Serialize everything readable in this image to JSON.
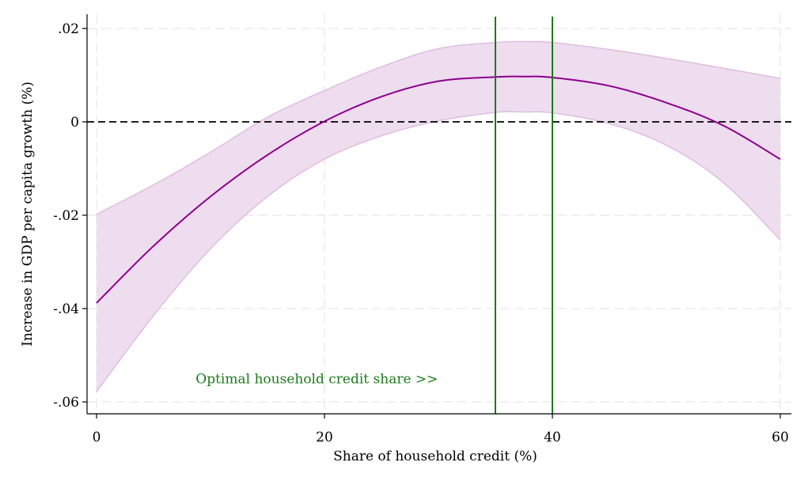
{
  "chart_data": {
    "type": "line",
    "title": "",
    "xlabel": "Share of household credit (%)",
    "ylabel": "Increase in GDP per capita growth (%)",
    "xlim": [
      0,
      60
    ],
    "ylim": [
      -0.062,
      0.022
    ],
    "x_ticks": [
      0,
      20,
      40,
      60
    ],
    "x_tick_labels": [
      "0",
      "20",
      "40",
      "60"
    ],
    "y_ticks": [
      -0.06,
      -0.04,
      -0.02,
      0,
      0.02
    ],
    "y_tick_labels": [
      "-.06",
      "-.04",
      "-.02",
      "0",
      ".02"
    ],
    "grid": true,
    "reference_line": {
      "y": 0,
      "style": "dashed",
      "color": "#000000"
    },
    "vertical_lines": {
      "x": [
        35,
        40
      ],
      "color": "#1a7a1a"
    },
    "annotation": {
      "text": "Optimal household credit share >>",
      "x": 8.7,
      "y": -0.055,
      "color": "#1a7a1a"
    },
    "series": [
      {
        "x": [
          0,
          5,
          10,
          15,
          20,
          25,
          30,
          35,
          37.5,
          40,
          45,
          50,
          55,
          60
        ],
        "estimate": [
          -0.0388,
          -0.0266,
          -0.016,
          -0.0071,
          0.0001,
          0.0054,
          0.0087,
          0.0096,
          0.0097,
          0.0095,
          0.0077,
          0.0041,
          -0.0008,
          -0.008
        ],
        "ci_lower": [
          -0.0578,
          -0.0415,
          -0.0272,
          -0.016,
          -0.008,
          -0.003,
          0.0002,
          0.002,
          0.0021,
          0.0019,
          -0.0004,
          -0.005,
          -0.013,
          -0.0253
        ],
        "ci_upper": [
          -0.0198,
          -0.0135,
          -0.0065,
          0.001,
          0.0067,
          0.0118,
          0.0157,
          0.017,
          0.0172,
          0.017,
          0.0155,
          0.0136,
          0.0115,
          0.0093
        ],
        "line_color": "#8b008b",
        "band_color": "#eedcef",
        "band_edge_color": "#dcb8de"
      }
    ]
  }
}
